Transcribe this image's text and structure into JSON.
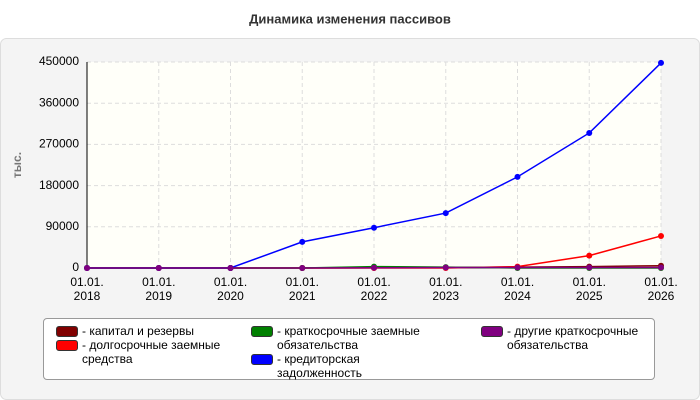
{
  "chart_data": {
    "type": "line",
    "title": "Динамика изменения пассивов",
    "ylabel": "тыс.",
    "categories": [
      "01.01. 2018",
      "01.01. 2019",
      "01.01. 2020",
      "01.01. 2021",
      "01.01. 2022",
      "01.01. 2023",
      "01.01. 2024",
      "01.01. 2025",
      "01.01. 2026"
    ],
    "ylim": [
      0,
      450000
    ],
    "yticks": [
      0,
      90000,
      180000,
      270000,
      360000,
      450000
    ],
    "grid": true,
    "series": [
      {
        "name": "капитал и резервы",
        "color": "#800000",
        "values": [
          0,
          0,
          0,
          0,
          500,
          1000,
          2000,
          3000,
          5000
        ]
      },
      {
        "name": "долгосрочные заемные средства",
        "color": "#ff0000",
        "values": [
          0,
          0,
          0,
          0,
          0,
          0,
          3000,
          27000,
          70000
        ]
      },
      {
        "name": "краткосрочные заемные обязательства",
        "color": "#008000",
        "values": [
          0,
          0,
          0,
          0,
          3000,
          2000,
          0,
          0,
          0
        ]
      },
      {
        "name": "кредиторская задолженность",
        "color": "#0000ff",
        "values": [
          0,
          0,
          0,
          57000,
          88000,
          120000,
          199000,
          295000,
          448000
        ]
      },
      {
        "name": "другие краткосрочные обязательства",
        "color": "#800080",
        "values": [
          0,
          0,
          0,
          0,
          500,
          1000,
          1000,
          1000,
          1000
        ]
      }
    ]
  }
}
